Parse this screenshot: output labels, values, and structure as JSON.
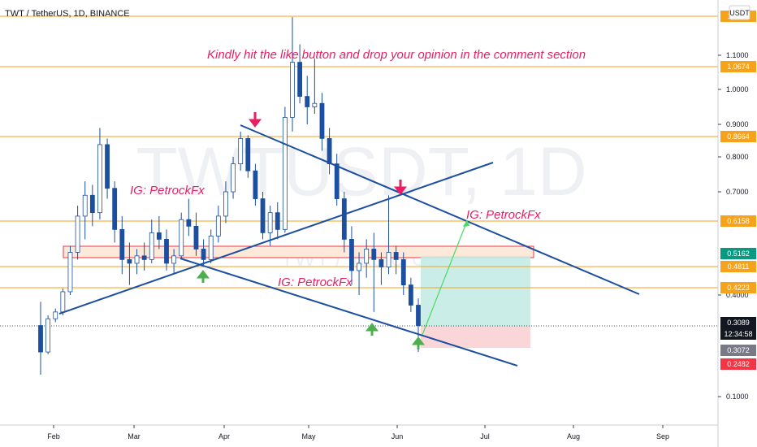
{
  "header": {
    "title": "TWT / TetherUS, 1D, BINANCE",
    "currency_badge": "USDT"
  },
  "watermark": {
    "big": "TWTUSDT, 1D",
    "small": "TWT / TetherUS"
  },
  "annotations": {
    "banner": "Kindly hit the like button and drop your opinion in the comment section",
    "ig_tags": [
      "IG: PetrockFx",
      "IG: PetrockFx",
      "IG: PetrockFx"
    ]
  },
  "colors": {
    "level_line": "#f7a21b",
    "level_label_bg": "#f7a21b",
    "trendline": "#1c4fa0",
    "candle": "#1c4fa0",
    "banner_text": "#e91e63",
    "arrow_down": "#e91e63",
    "arrow_up": "#4caf50",
    "zone_border": "#f23645",
    "zone_fill": "#fde9d9",
    "target_fill": "#c4ebe4",
    "stop_fill": "#fbd2d4",
    "projection": "#4cd964",
    "current_price_bg": "#131722",
    "green_tag": "#089981",
    "red_tag": "#f23645",
    "gray_tag": "#787b86"
  },
  "chart_data": {
    "type": "candlestick",
    "title": "TWT / TetherUS, 1D, BINANCE",
    "x_ticks": [
      "Feb",
      "Mar",
      "Apr",
      "May",
      "Jun",
      "Jul",
      "Aug",
      "Sep"
    ],
    "y_ticks": [
      "0.1000",
      "0.4000",
      "0.7000",
      "0.8000",
      "0.9000",
      "1.0000",
      "1.1000"
    ],
    "y_scale": "nonlinear",
    "horizontal_levels": [
      "1.0674",
      "0.8664",
      "0.6158",
      "0.4811",
      "0.4223"
    ],
    "price_tags": {
      "top_partial": "1.1714",
      "level_0_5162": "0.5162",
      "current": "0.3089",
      "countdown": "12:34:58",
      "entry": "0.3072",
      "stop": "0.2482"
    },
    "supply_demand_zone": {
      "from": 0.5162,
      "to": 0.54
    },
    "position": {
      "entry": 0.3072,
      "target": 0.5162,
      "stop": 0.2482
    },
    "candles": [
      [
        0.31,
        0.38,
        0.2,
        0.3
      ],
      [
        0.3,
        0.34,
        0.29,
        0.33
      ],
      [
        0.33,
        0.36,
        0.32,
        0.35
      ],
      [
        0.35,
        0.42,
        0.34,
        0.41
      ],
      [
        0.41,
        0.54,
        0.4,
        0.52
      ],
      [
        0.52,
        0.66,
        0.5,
        0.63
      ],
      [
        0.63,
        0.73,
        0.56,
        0.69
      ],
      [
        0.69,
        0.72,
        0.6,
        0.64
      ],
      [
        0.64,
        0.89,
        0.62,
        0.84
      ],
      [
        0.84,
        0.86,
        0.68,
        0.71
      ],
      [
        0.71,
        0.73,
        0.55,
        0.59
      ],
      [
        0.59,
        0.63,
        0.46,
        0.5
      ],
      [
        0.5,
        0.55,
        0.43,
        0.49
      ],
      [
        0.49,
        0.53,
        0.46,
        0.51
      ],
      [
        0.51,
        0.55,
        0.47,
        0.5
      ],
      [
        0.5,
        0.62,
        0.49,
        0.58
      ],
      [
        0.58,
        0.63,
        0.53,
        0.56
      ],
      [
        0.56,
        0.59,
        0.47,
        0.49
      ],
      [
        0.49,
        0.53,
        0.46,
        0.51
      ],
      [
        0.51,
        0.64,
        0.5,
        0.62
      ],
      [
        0.62,
        0.68,
        0.57,
        0.6
      ],
      [
        0.6,
        0.64,
        0.51,
        0.53
      ],
      [
        0.53,
        0.56,
        0.48,
        0.5
      ],
      [
        0.5,
        0.59,
        0.49,
        0.57
      ],
      [
        0.57,
        0.66,
        0.55,
        0.63
      ],
      [
        0.63,
        0.73,
        0.61,
        0.7
      ],
      [
        0.7,
        0.8,
        0.68,
        0.78
      ],
      [
        0.78,
        0.88,
        0.76,
        0.86
      ],
      [
        0.86,
        0.87,
        0.74,
        0.76
      ],
      [
        0.76,
        0.78,
        0.66,
        0.68
      ],
      [
        0.68,
        0.7,
        0.56,
        0.58
      ],
      [
        0.58,
        0.66,
        0.54,
        0.64
      ],
      [
        0.64,
        0.67,
        0.56,
        0.59
      ],
      [
        0.59,
        0.95,
        0.58,
        0.92
      ],
      [
        0.92,
        1.17,
        0.88,
        1.08
      ],
      [
        1.08,
        1.12,
        0.96,
        0.98
      ],
      [
        0.98,
        1.04,
        0.9,
        0.95
      ],
      [
        0.95,
        1.09,
        0.93,
        0.96
      ],
      [
        0.96,
        0.99,
        0.82,
        0.86
      ],
      [
        0.86,
        0.89,
        0.75,
        0.78
      ],
      [
        0.78,
        0.81,
        0.66,
        0.68
      ],
      [
        0.68,
        0.7,
        0.52,
        0.56
      ],
      [
        0.56,
        0.6,
        0.43,
        0.47
      ],
      [
        0.47,
        0.52,
        0.4,
        0.49
      ],
      [
        0.49,
        0.56,
        0.45,
        0.53
      ],
      [
        0.53,
        0.58,
        0.35,
        0.5
      ],
      [
        0.5,
        0.52,
        0.43,
        0.48
      ],
      [
        0.48,
        0.69,
        0.46,
        0.52
      ],
      [
        0.52,
        0.54,
        0.46,
        0.5
      ],
      [
        0.5,
        0.52,
        0.4,
        0.43
      ],
      [
        0.43,
        0.45,
        0.35,
        0.37
      ],
      [
        0.37,
        0.39,
        0.3,
        0.31
      ]
    ]
  }
}
